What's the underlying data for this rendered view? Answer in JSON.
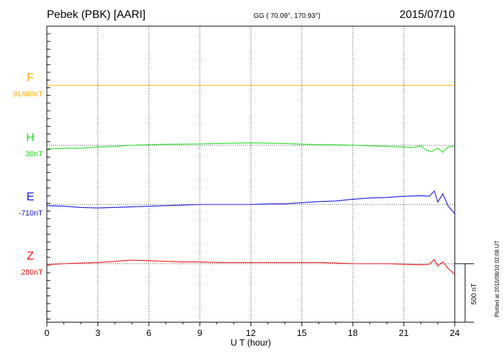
{
  "header": {
    "station": "Pebek (PBK)  [AARI]",
    "coords": "GG ( 70.09°, 170.93°)",
    "date": "2015/07/10"
  },
  "footer": {
    "plotted": "Plotted at 2015/08/10 02:08 UT"
  },
  "colors": {
    "F": "#ffb000",
    "H": "#22dd22",
    "E": "#1010dd",
    "Z": "#ee1111"
  },
  "chart_data": {
    "type": "line",
    "xlabel": "U T (hour)",
    "xlim": [
      0,
      24
    ],
    "xticks": [
      0,
      3,
      6,
      9,
      12,
      15,
      18,
      21,
      24
    ],
    "units": "nT",
    "scale_bar": {
      "value": 500,
      "label": "500 nT"
    },
    "series": [
      {
        "name": "F",
        "baseline_label": "91460nT",
        "x": [
          0,
          3,
          6,
          9,
          12,
          15,
          18,
          21,
          24
        ],
        "values": [
          0,
          0,
          0,
          0,
          0,
          0,
          0,
          0,
          0
        ]
      },
      {
        "name": "H",
        "baseline_label": "30nT",
        "x": [
          0,
          1,
          2,
          3,
          4,
          5,
          6,
          7,
          8,
          9,
          10,
          11,
          12,
          13,
          14,
          15,
          16,
          17,
          18,
          19,
          20,
          21,
          21.5,
          22,
          22.3,
          22.6,
          23,
          23.3,
          23.6,
          24
        ],
        "values": [
          -30,
          -25,
          -25,
          -15,
          -10,
          0,
          5,
          8,
          10,
          12,
          15,
          18,
          20,
          18,
          15,
          10,
          5,
          5,
          0,
          -5,
          -10,
          -15,
          -20,
          -5,
          -40,
          -55,
          -25,
          -60,
          -15,
          -5
        ]
      },
      {
        "name": "E",
        "baseline_label": "-710nT",
        "x": [
          0,
          1,
          2,
          3,
          4,
          5,
          6,
          7,
          8,
          9,
          10,
          11,
          12,
          13,
          14,
          15,
          16,
          17,
          18,
          19,
          20,
          21,
          22,
          22.5,
          22.8,
          23,
          23.3,
          23.6,
          24
        ],
        "values": [
          -10,
          -15,
          -25,
          -30,
          -25,
          -20,
          -15,
          -10,
          -5,
          0,
          0,
          0,
          0,
          5,
          5,
          15,
          25,
          30,
          45,
          55,
          60,
          70,
          75,
          70,
          115,
          20,
          90,
          -10,
          -80
        ]
      },
      {
        "name": "Z",
        "baseline_label": "280nT",
        "x": [
          0,
          1,
          2,
          3,
          4,
          5,
          6,
          7,
          8,
          9,
          10,
          11,
          12,
          13,
          14,
          15,
          16,
          17,
          18,
          19,
          20,
          21,
          22,
          22.5,
          22.8,
          23,
          23.3,
          23.6,
          24
        ],
        "values": [
          -10,
          0,
          5,
          10,
          20,
          30,
          25,
          20,
          15,
          15,
          10,
          10,
          10,
          10,
          10,
          10,
          10,
          5,
          0,
          0,
          0,
          -5,
          -10,
          -5,
          35,
          -20,
          15,
          -40,
          -90
        ]
      }
    ]
  }
}
